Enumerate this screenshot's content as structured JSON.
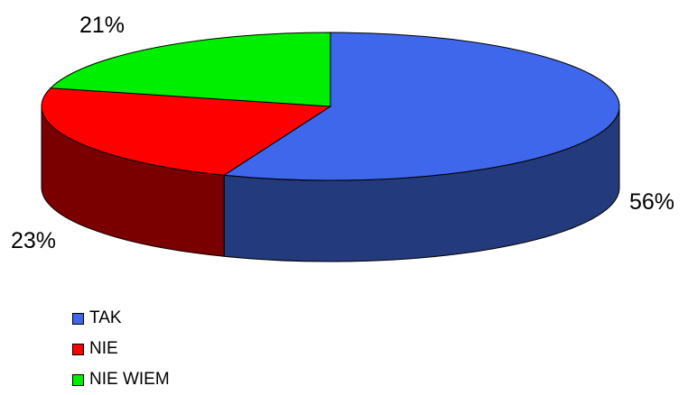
{
  "chart_data": {
    "type": "pie",
    "style": "3d",
    "slices": [
      {
        "label": "TAK",
        "value": 56,
        "value_label": "56%",
        "color": "#3f67ec",
        "side_color": "#233a7c"
      },
      {
        "label": "NIE",
        "value": 23,
        "value_label": "23%",
        "color": "#ff0000",
        "side_color": "#7a0000"
      },
      {
        "label": "NIE WIEM",
        "value": 21,
        "value_label": "21%",
        "color": "#00ee00",
        "side_color": "#007a00"
      }
    ],
    "legend_position": "bottom-left"
  },
  "legend": {
    "items": [
      {
        "label": "TAK"
      },
      {
        "label": "NIE"
      },
      {
        "label": "NIE WIEM"
      }
    ]
  }
}
